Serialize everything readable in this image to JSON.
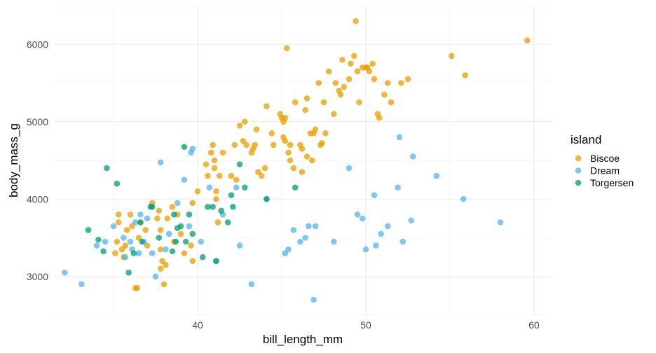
{
  "chart_data": {
    "type": "scatter",
    "xlabel": "bill_length_mm",
    "ylabel": "body_mass_g",
    "xlim": [
      31.5,
      61.0
    ],
    "ylim": [
      2500,
      6500
    ],
    "x_ticks": [
      40,
      50,
      60
    ],
    "y_ticks": [
      3000,
      4000,
      5000,
      6000
    ],
    "grid": true,
    "legend": {
      "title": "island",
      "placement": "right"
    },
    "series": [
      {
        "name": "Biscoe",
        "color": "#E69F00",
        "points": [
          [
            35.1,
            3300
          ],
          [
            35.2,
            3450
          ],
          [
            35.3,
            3800
          ],
          [
            35.3,
            3700
          ],
          [
            35.5,
            3350
          ],
          [
            35.6,
            3250
          ],
          [
            35.7,
            3400
          ],
          [
            35.8,
            3600
          ],
          [
            36.0,
            3800
          ],
          [
            36.1,
            3650
          ],
          [
            36.3,
            2850
          ],
          [
            36.4,
            2850
          ],
          [
            36.5,
            3500
          ],
          [
            36.6,
            3700
          ],
          [
            36.9,
            3600
          ],
          [
            37.0,
            3400
          ],
          [
            37.3,
            3950
          ],
          [
            37.6,
            3750
          ],
          [
            37.7,
            3850
          ],
          [
            37.8,
            3600
          ],
          [
            37.8,
            3350
          ],
          [
            37.8,
            3100
          ],
          [
            37.9,
            3200
          ],
          [
            38.0,
            2900
          ],
          [
            38.1,
            3150
          ],
          [
            38.2,
            3750
          ],
          [
            38.5,
            3900
          ],
          [
            38.6,
            3450
          ],
          [
            38.8,
            3800
          ],
          [
            39.0,
            3550
          ],
          [
            39.2,
            3300
          ],
          [
            39.6,
            3400
          ],
          [
            39.7,
            3200
          ],
          [
            39.7,
            3950
          ],
          [
            40.0,
            4100
          ],
          [
            40.5,
            4450
          ],
          [
            40.6,
            4300
          ],
          [
            40.8,
            4600
          ],
          [
            40.9,
            4700
          ],
          [
            41.0,
            4400
          ],
          [
            41.0,
            4500
          ],
          [
            41.1,
            4100
          ],
          [
            41.1,
            4000
          ],
          [
            41.2,
            3700
          ],
          [
            41.3,
            4300
          ],
          [
            41.5,
            4600
          ],
          [
            42.0,
            4300
          ],
          [
            42.2,
            4700
          ],
          [
            42.3,
            4250
          ],
          [
            42.5,
            4950
          ],
          [
            42.7,
            4750
          ],
          [
            42.8,
            5000
          ],
          [
            42.9,
            4700
          ],
          [
            43.2,
            4600
          ],
          [
            43.3,
            4650
          ],
          [
            43.4,
            4700
          ],
          [
            43.5,
            4900
          ],
          [
            43.6,
            4350
          ],
          [
            43.8,
            4300
          ],
          [
            44.0,
            4400
          ],
          [
            44.1,
            5200
          ],
          [
            44.4,
            4850
          ],
          [
            44.5,
            4700
          ],
          [
            44.9,
            5100
          ],
          [
            45.0,
            5050
          ],
          [
            45.1,
            5000
          ],
          [
            45.1,
            4800
          ],
          [
            45.2,
            4750
          ],
          [
            45.2,
            5050
          ],
          [
            45.3,
            5950
          ],
          [
            45.4,
            4600
          ],
          [
            45.5,
            4500
          ],
          [
            45.5,
            4700
          ],
          [
            45.7,
            4400
          ],
          [
            45.8,
            5250
          ],
          [
            46.1,
            4700
          ],
          [
            46.2,
            4350
          ],
          [
            46.2,
            4650
          ],
          [
            46.4,
            5150
          ],
          [
            46.5,
            5300
          ],
          [
            46.5,
            4550
          ],
          [
            46.7,
            4850
          ],
          [
            46.8,
            4500
          ],
          [
            46.9,
            4850
          ],
          [
            47.0,
            4900
          ],
          [
            47.2,
            5500
          ],
          [
            47.3,
            4700
          ],
          [
            47.4,
            4725
          ],
          [
            47.5,
            5250
          ],
          [
            47.6,
            4850
          ],
          [
            47.8,
            5650
          ],
          [
            48.1,
            5100
          ],
          [
            48.2,
            5500
          ],
          [
            48.4,
            5400
          ],
          [
            48.5,
            5350
          ],
          [
            48.6,
            5800
          ],
          [
            48.7,
            5450
          ],
          [
            49.0,
            5550
          ],
          [
            49.1,
            5750
          ],
          [
            49.3,
            5850
          ],
          [
            49.4,
            6300
          ],
          [
            49.5,
            5650
          ],
          [
            49.6,
            5250
          ],
          [
            49.8,
            5700
          ],
          [
            50.0,
            5700
          ],
          [
            50.1,
            5700
          ],
          [
            50.2,
            5650
          ],
          [
            50.4,
            5750
          ],
          [
            50.5,
            5550
          ],
          [
            50.7,
            5100
          ],
          [
            50.8,
            5050
          ],
          [
            51.1,
            5350
          ],
          [
            51.3,
            5500
          ],
          [
            51.5,
            5250
          ],
          [
            52.1,
            5500
          ],
          [
            52.5,
            5550
          ],
          [
            55.1,
            5850
          ],
          [
            55.9,
            5600
          ],
          [
            59.6,
            6050
          ]
        ]
      },
      {
        "name": "Dream",
        "color": "#56B4E9",
        "points": [
          [
            32.1,
            3050
          ],
          [
            33.1,
            2900
          ],
          [
            34.0,
            3400
          ],
          [
            34.5,
            3450
          ],
          [
            35.0,
            3650
          ],
          [
            35.6,
            3500
          ],
          [
            35.7,
            3250
          ],
          [
            36.0,
            3450
          ],
          [
            36.1,
            3350
          ],
          [
            36.3,
            3700
          ],
          [
            36.5,
            3300
          ],
          [
            36.6,
            3800
          ],
          [
            36.8,
            3450
          ],
          [
            37.0,
            3750
          ],
          [
            37.3,
            3300
          ],
          [
            37.5,
            3000
          ],
          [
            37.8,
            4475
          ],
          [
            38.1,
            3350
          ],
          [
            38.3,
            3550
          ],
          [
            38.8,
            3950
          ],
          [
            39.2,
            4250
          ],
          [
            39.5,
            3650
          ],
          [
            39.6,
            4600
          ],
          [
            39.7,
            4650
          ],
          [
            40.2,
            3450
          ],
          [
            40.7,
            4150
          ],
          [
            41.1,
            3200
          ],
          [
            41.5,
            3800
          ],
          [
            42.3,
            4150
          ],
          [
            42.5,
            3400
          ],
          [
            43.2,
            2900
          ],
          [
            44.1,
            4000
          ],
          [
            45.2,
            3300
          ],
          [
            45.4,
            3350
          ],
          [
            45.7,
            3600
          ],
          [
            46.1,
            3450
          ],
          [
            46.4,
            3500
          ],
          [
            46.6,
            3650
          ],
          [
            46.9,
            2700
          ],
          [
            47.0,
            3650
          ],
          [
            48.1,
            3450
          ],
          [
            49.0,
            4400
          ],
          [
            49.5,
            3800
          ],
          [
            49.8,
            3750
          ],
          [
            50.0,
            3350
          ],
          [
            50.5,
            4050
          ],
          [
            50.6,
            3400
          ],
          [
            50.9,
            3550
          ],
          [
            51.3,
            3650
          ],
          [
            51.9,
            4150
          ],
          [
            52.0,
            4800
          ],
          [
            52.2,
            3450
          ],
          [
            52.7,
            3725
          ],
          [
            52.8,
            4550
          ],
          [
            54.2,
            4300
          ],
          [
            55.8,
            4000
          ],
          [
            58.0,
            3700
          ]
        ]
      },
      {
        "name": "Torgersen",
        "color": "#009E73",
        "points": [
          [
            33.5,
            3600
          ],
          [
            34.1,
            3475
          ],
          [
            34.4,
            3325
          ],
          [
            34.6,
            4400
          ],
          [
            35.2,
            4200
          ],
          [
            35.9,
            3050
          ],
          [
            36.2,
            3300
          ],
          [
            36.6,
            3700
          ],
          [
            36.7,
            3450
          ],
          [
            37.2,
            3900
          ],
          [
            37.3,
            3900
          ],
          [
            37.7,
            3500
          ],
          [
            38.5,
            3325
          ],
          [
            38.6,
            3800
          ],
          [
            38.7,
            3450
          ],
          [
            38.8,
            3625
          ],
          [
            39.0,
            3650
          ],
          [
            39.2,
            4675
          ],
          [
            39.3,
            3450
          ],
          [
            39.5,
            3800
          ],
          [
            39.7,
            3550
          ],
          [
            40.3,
            3250
          ],
          [
            40.6,
            3900
          ],
          [
            40.9,
            3900
          ],
          [
            41.1,
            3200
          ],
          [
            41.4,
            3850
          ],
          [
            41.8,
            3700
          ],
          [
            42.0,
            4050
          ],
          [
            42.1,
            3900
          ],
          [
            42.5,
            4450
          ],
          [
            42.8,
            4150
          ],
          [
            44.1,
            4000
          ],
          [
            45.8,
            4150
          ]
        ]
      }
    ]
  }
}
